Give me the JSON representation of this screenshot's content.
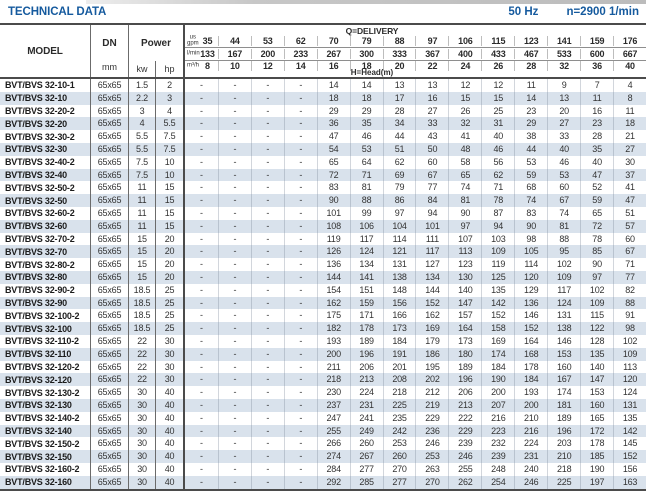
{
  "colors": {
    "accent": "#155a9e",
    "row_stripe": "#d9e2ec"
  },
  "header": {
    "title": "TECHNICAL DATA",
    "frequency": "50 Hz",
    "speed": "n=2900 1/min"
  },
  "table": {
    "model_header": "MODEL",
    "dn_header": "DN",
    "dn_unit": "mm",
    "power_header": "Power",
    "kw_label": "kw",
    "hp_label": "hp",
    "delivery_title": "Q=DELIVERY",
    "head_title": "H=Head(m)",
    "flow_units": [
      {
        "label_lines": [
          "us",
          "gpm"
        ],
        "values": [
          "35",
          "44",
          "53",
          "62",
          "70",
          "79",
          "88",
          "97",
          "106",
          "115",
          "123",
          "141",
          "159",
          "176"
        ]
      },
      {
        "label_lines": [
          "l/min"
        ],
        "values": [
          "133",
          "167",
          "200",
          "233",
          "267",
          "300",
          "333",
          "367",
          "400",
          "433",
          "467",
          "533",
          "600",
          "667"
        ]
      },
      {
        "label_lines": [
          "m³/h"
        ],
        "values": [
          "8",
          "10",
          "12",
          "14",
          "16",
          "18",
          "20",
          "22",
          "24",
          "26",
          "28",
          "32",
          "36",
          "40"
        ]
      }
    ],
    "rows": [
      {
        "model": "BVT/BVS 32-10-1",
        "dn": "65x65",
        "kw": "1.5",
        "hp": "2",
        "heads": [
          "-",
          "-",
          "-",
          "-",
          "14",
          "14",
          "13",
          "13",
          "12",
          "12",
          "11",
          "9",
          "7",
          "4"
        ]
      },
      {
        "model": "BVT/BVS 32-10",
        "dn": "65x65",
        "kw": "2.2",
        "hp": "3",
        "heads": [
          "-",
          "-",
          "-",
          "-",
          "18",
          "18",
          "17",
          "16",
          "15",
          "15",
          "14",
          "13",
          "11",
          "8"
        ]
      },
      {
        "model": "BVT/BVS 32-20-2",
        "dn": "65x65",
        "kw": "3",
        "hp": "4",
        "heads": [
          "-",
          "-",
          "-",
          "-",
          "29",
          "29",
          "28",
          "27",
          "26",
          "25",
          "23",
          "20",
          "16",
          "11"
        ]
      },
      {
        "model": "BVT/BVS 32-20",
        "dn": "65x65",
        "kw": "4",
        "hp": "5.5",
        "heads": [
          "-",
          "-",
          "-",
          "-",
          "36",
          "35",
          "34",
          "33",
          "32",
          "31",
          "29",
          "27",
          "23",
          "18"
        ]
      },
      {
        "model": "BVT/BVS 32-30-2",
        "dn": "65x65",
        "kw": "5.5",
        "hp": "7.5",
        "heads": [
          "-",
          "-",
          "-",
          "-",
          "47",
          "46",
          "44",
          "43",
          "41",
          "40",
          "38",
          "33",
          "28",
          "21"
        ]
      },
      {
        "model": "BVT/BVS 32-30",
        "dn": "65x65",
        "kw": "5.5",
        "hp": "7.5",
        "heads": [
          "-",
          "-",
          "-",
          "-",
          "54",
          "53",
          "51",
          "50",
          "48",
          "46",
          "44",
          "40",
          "35",
          "27"
        ]
      },
      {
        "model": "BVT/BVS 32-40-2",
        "dn": "65x65",
        "kw": "7.5",
        "hp": "10",
        "heads": [
          "-",
          "-",
          "-",
          "-",
          "65",
          "64",
          "62",
          "60",
          "58",
          "56",
          "53",
          "46",
          "40",
          "30"
        ]
      },
      {
        "model": "BVT/BVS 32-40",
        "dn": "65x65",
        "kw": "7.5",
        "hp": "10",
        "heads": [
          "-",
          "-",
          "-",
          "-",
          "72",
          "71",
          "69",
          "67",
          "65",
          "62",
          "59",
          "53",
          "47",
          "37"
        ]
      },
      {
        "model": "BVT/BVS 32-50-2",
        "dn": "65x65",
        "kw": "11",
        "hp": "15",
        "heads": [
          "-",
          "-",
          "-",
          "-",
          "83",
          "81",
          "79",
          "77",
          "74",
          "71",
          "68",
          "60",
          "52",
          "41"
        ]
      },
      {
        "model": "BVT/BVS 32-50",
        "dn": "65x65",
        "kw": "11",
        "hp": "15",
        "heads": [
          "-",
          "-",
          "-",
          "-",
          "90",
          "88",
          "86",
          "84",
          "81",
          "78",
          "74",
          "67",
          "59",
          "47"
        ]
      },
      {
        "model": "BVT/BVS 32-60-2",
        "dn": "65x65",
        "kw": "11",
        "hp": "15",
        "heads": [
          "-",
          "-",
          "-",
          "-",
          "101",
          "99",
          "97",
          "94",
          "90",
          "87",
          "83",
          "74",
          "65",
          "51"
        ]
      },
      {
        "model": "BVT/BVS 32-60",
        "dn": "65x65",
        "kw": "11",
        "hp": "15",
        "heads": [
          "-",
          "-",
          "-",
          "-",
          "108",
          "106",
          "104",
          "101",
          "97",
          "94",
          "90",
          "81",
          "72",
          "57"
        ]
      },
      {
        "model": "BVT/BVS 32-70-2",
        "dn": "65x65",
        "kw": "15",
        "hp": "20",
        "heads": [
          "-",
          "-",
          "-",
          "-",
          "119",
          "117",
          "114",
          "111",
          "107",
          "103",
          "98",
          "88",
          "78",
          "60"
        ]
      },
      {
        "model": "BVT/BVS 32-70",
        "dn": "65x65",
        "kw": "15",
        "hp": "20",
        "heads": [
          "-",
          "-",
          "-",
          "-",
          "126",
          "124",
          "121",
          "117",
          "113",
          "109",
          "105",
          "95",
          "85",
          "67"
        ]
      },
      {
        "model": "BVT/BVS 32-80-2",
        "dn": "65x65",
        "kw": "15",
        "hp": "20",
        "heads": [
          "-",
          "-",
          "-",
          "-",
          "136",
          "134",
          "131",
          "127",
          "123",
          "119",
          "114",
          "102",
          "90",
          "71"
        ]
      },
      {
        "model": "BVT/BVS 32-80",
        "dn": "65x65",
        "kw": "15",
        "hp": "20",
        "heads": [
          "-",
          "-",
          "-",
          "-",
          "144",
          "141",
          "138",
          "134",
          "130",
          "125",
          "120",
          "109",
          "97",
          "77"
        ]
      },
      {
        "model": "BVT/BVS 32-90-2",
        "dn": "65x65",
        "kw": "18.5",
        "hp": "25",
        "heads": [
          "-",
          "-",
          "-",
          "-",
          "154",
          "151",
          "148",
          "144",
          "140",
          "135",
          "129",
          "117",
          "102",
          "82"
        ]
      },
      {
        "model": "BVT/BVS 32-90",
        "dn": "65x65",
        "kw": "18.5",
        "hp": "25",
        "heads": [
          "-",
          "-",
          "-",
          "-",
          "162",
          "159",
          "156",
          "152",
          "147",
          "142",
          "136",
          "124",
          "109",
          "88"
        ]
      },
      {
        "model": "BVT/BVS 32-100-2",
        "dn": "65x65",
        "kw": "18.5",
        "hp": "25",
        "heads": [
          "-",
          "-",
          "-",
          "-",
          "175",
          "171",
          "166",
          "162",
          "157",
          "152",
          "146",
          "131",
          "115",
          "91"
        ]
      },
      {
        "model": "BVT/BVS 32-100",
        "dn": "65x65",
        "kw": "18.5",
        "hp": "25",
        "heads": [
          "-",
          "-",
          "-",
          "-",
          "182",
          "178",
          "173",
          "169",
          "164",
          "158",
          "152",
          "138",
          "122",
          "98"
        ]
      },
      {
        "model": "BVT/BVS 32-110-2",
        "dn": "65x65",
        "kw": "22",
        "hp": "30",
        "heads": [
          "-",
          "-",
          "-",
          "-",
          "193",
          "189",
          "184",
          "179",
          "173",
          "169",
          "164",
          "146",
          "128",
          "102"
        ]
      },
      {
        "model": "BVT/BVS 32-110",
        "dn": "65x65",
        "kw": "22",
        "hp": "30",
        "heads": [
          "-",
          "-",
          "-",
          "-",
          "200",
          "196",
          "191",
          "186",
          "180",
          "174",
          "168",
          "153",
          "135",
          "109"
        ]
      },
      {
        "model": "BVT/BVS 32-120-2",
        "dn": "65x65",
        "kw": "22",
        "hp": "30",
        "heads": [
          "-",
          "-",
          "-",
          "-",
          "211",
          "206",
          "201",
          "195",
          "189",
          "184",
          "178",
          "160",
          "140",
          "113"
        ]
      },
      {
        "model": "BVT/BVS 32-120",
        "dn": "65x65",
        "kw": "22",
        "hp": "30",
        "heads": [
          "-",
          "-",
          "-",
          "-",
          "218",
          "213",
          "208",
          "202",
          "196",
          "190",
          "184",
          "167",
          "147",
          "120"
        ]
      },
      {
        "model": "BVT/BVS 32-130-2",
        "dn": "65x65",
        "kw": "30",
        "hp": "40",
        "heads": [
          "-",
          "-",
          "-",
          "-",
          "230",
          "224",
          "218",
          "212",
          "206",
          "200",
          "193",
          "174",
          "153",
          "124"
        ]
      },
      {
        "model": "BVT/BVS 32-130",
        "dn": "65x65",
        "kw": "30",
        "hp": "40",
        "heads": [
          "-",
          "-",
          "-",
          "-",
          "237",
          "231",
          "225",
          "219",
          "213",
          "207",
          "200",
          "181",
          "160",
          "131"
        ]
      },
      {
        "model": "BVT/BVS 32-140-2",
        "dn": "65x65",
        "kw": "30",
        "hp": "40",
        "heads": [
          "-",
          "-",
          "-",
          "-",
          "247",
          "241",
          "235",
          "229",
          "222",
          "216",
          "210",
          "189",
          "165",
          "135"
        ]
      },
      {
        "model": "BVT/BVS 32-140",
        "dn": "65x65",
        "kw": "30",
        "hp": "40",
        "heads": [
          "-",
          "-",
          "-",
          "-",
          "255",
          "249",
          "242",
          "236",
          "229",
          "223",
          "216",
          "196",
          "172",
          "142"
        ]
      },
      {
        "model": "BVT/BVS 32-150-2",
        "dn": "65x65",
        "kw": "30",
        "hp": "40",
        "heads": [
          "-",
          "-",
          "-",
          "-",
          "266",
          "260",
          "253",
          "246",
          "239",
          "232",
          "224",
          "203",
          "178",
          "145"
        ]
      },
      {
        "model": "BVT/BVS 32-150",
        "dn": "65x65",
        "kw": "30",
        "hp": "40",
        "heads": [
          "-",
          "-",
          "-",
          "-",
          "274",
          "267",
          "260",
          "253",
          "246",
          "239",
          "231",
          "210",
          "185",
          "152"
        ]
      },
      {
        "model": "BVT/BVS 32-160-2",
        "dn": "65x65",
        "kw": "30",
        "hp": "40",
        "heads": [
          "-",
          "-",
          "-",
          "-",
          "284",
          "277",
          "270",
          "263",
          "255",
          "248",
          "240",
          "218",
          "190",
          "156"
        ]
      },
      {
        "model": "BVT/BVS 32-160",
        "dn": "65x65",
        "kw": "30",
        "hp": "40",
        "heads": [
          "-",
          "-",
          "-",
          "-",
          "292",
          "285",
          "277",
          "270",
          "262",
          "254",
          "246",
          "225",
          "197",
          "163"
        ]
      }
    ]
  }
}
